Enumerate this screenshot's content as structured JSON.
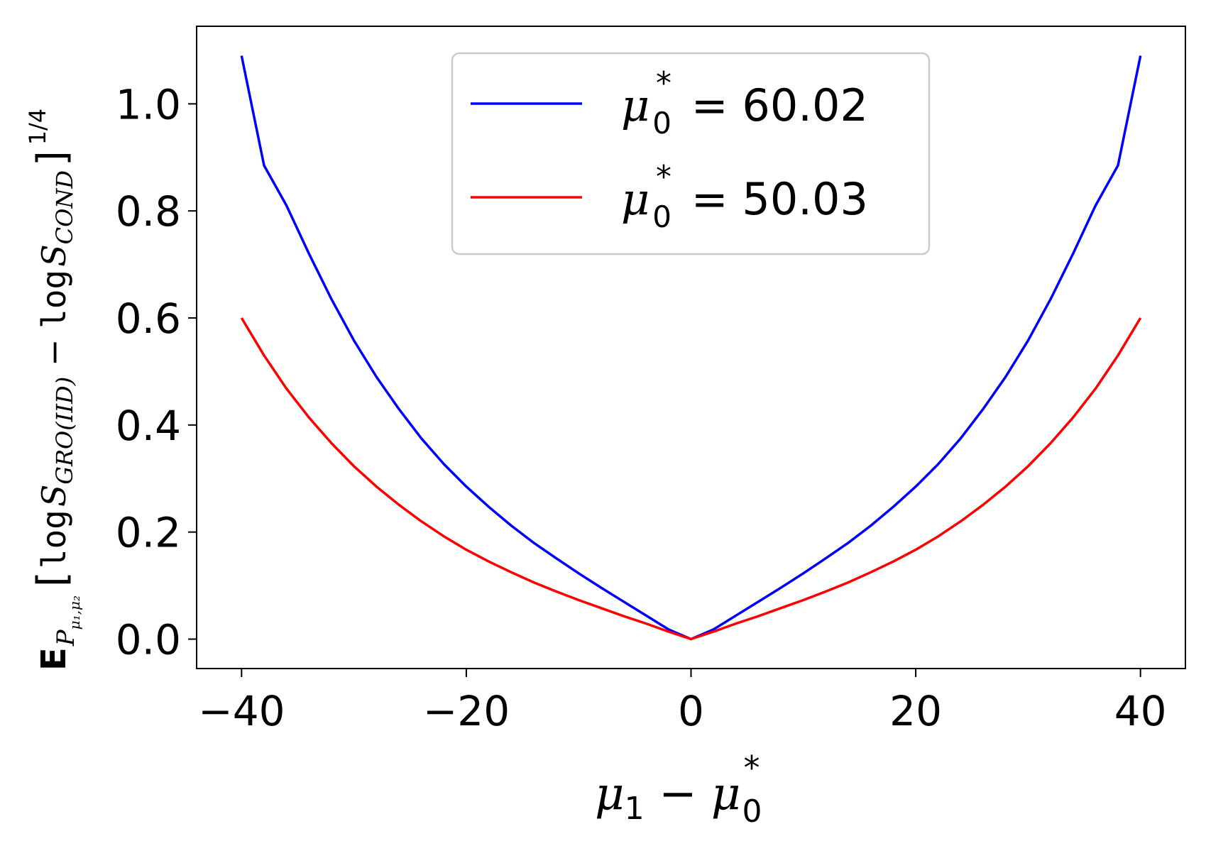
{
  "chart_data": {
    "type": "line",
    "xlabel": {
      "mu1": "μ",
      "sub1": "1",
      "minus": " − ",
      "mu0": "μ",
      "sub0": "0",
      "star": "*"
    },
    "ylabel": {
      "E": "E",
      "E_sub": "P",
      "E_subsub": "μ₁,μ₂",
      "open": "[",
      "log1": "log",
      "S1": "S",
      "S1_sub": "GRO(IID)",
      "minus": " − ",
      "log2": "log",
      "S2": "S",
      "S2_sub": "COND",
      "close": "]",
      "power": "1/4"
    },
    "xlim": [
      -44,
      44
    ],
    "ylim": [
      -0.055,
      1.145
    ],
    "xticks": [
      -40,
      -20,
      0,
      20,
      40
    ],
    "xtick_labels": [
      "−40",
      "−20",
      "0",
      "20",
      "40"
    ],
    "yticks": [
      0.0,
      0.2,
      0.4,
      0.6,
      0.8,
      1.0
    ],
    "ytick_labels": [
      "0.0",
      "0.2",
      "0.4",
      "0.6",
      "0.8",
      "1.0"
    ],
    "legend_position": "top-center",
    "series": [
      {
        "name": "μ0* = 60.02",
        "legend": {
          "mu": "μ",
          "sub": "0",
          "star": "*",
          "rest": " = 60.02"
        },
        "color": "#0000ff",
        "x": [
          -40,
          -38,
          -36,
          -34,
          -32,
          -30,
          -28,
          -26,
          -24,
          -22,
          -20,
          -18,
          -16,
          -14,
          -12,
          -10,
          -8,
          -6,
          -4,
          -2,
          0,
          2,
          4,
          6,
          8,
          10,
          12,
          14,
          16,
          18,
          20,
          22,
          24,
          26,
          28,
          30,
          32,
          34,
          36,
          38,
          40
        ],
        "y": [
          1.09,
          0.885,
          0.81,
          0.72,
          0.635,
          0.558,
          0.49,
          0.43,
          0.375,
          0.327,
          0.285,
          0.247,
          0.212,
          0.18,
          0.151,
          0.123,
          0.096,
          0.07,
          0.044,
          0.018,
          0.0,
          0.018,
          0.044,
          0.07,
          0.096,
          0.123,
          0.151,
          0.18,
          0.212,
          0.247,
          0.285,
          0.327,
          0.375,
          0.43,
          0.49,
          0.558,
          0.635,
          0.72,
          0.81,
          0.885,
          1.09
        ]
      },
      {
        "name": "μ0* = 50.03",
        "legend": {
          "mu": "μ",
          "sub": "0",
          "star": "*",
          "rest": " = 50.03"
        },
        "color": "#ff0000",
        "x": [
          -40,
          -38,
          -36,
          -34,
          -32,
          -30,
          -28,
          -26,
          -24,
          -22,
          -20,
          -18,
          -16,
          -14,
          -12,
          -10,
          -8,
          -6,
          -4,
          -2,
          0,
          2,
          4,
          6,
          8,
          10,
          12,
          14,
          16,
          18,
          20,
          22,
          24,
          26,
          28,
          30,
          32,
          34,
          36,
          38,
          40
        ],
        "y": [
          0.6,
          0.53,
          0.468,
          0.414,
          0.366,
          0.323,
          0.285,
          0.251,
          0.22,
          0.192,
          0.167,
          0.145,
          0.125,
          0.106,
          0.089,
          0.073,
          0.058,
          0.043,
          0.029,
          0.014,
          0.0,
          0.014,
          0.029,
          0.043,
          0.058,
          0.073,
          0.089,
          0.106,
          0.125,
          0.145,
          0.167,
          0.192,
          0.22,
          0.251,
          0.285,
          0.323,
          0.366,
          0.414,
          0.468,
          0.53,
          0.6
        ]
      }
    ]
  }
}
